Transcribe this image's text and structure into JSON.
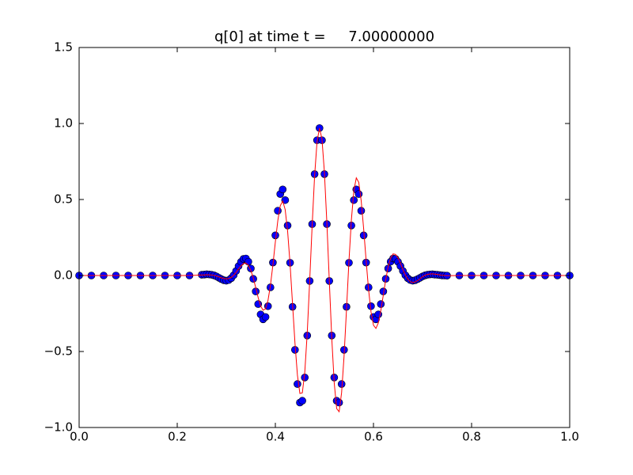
{
  "chart_data": {
    "type": "scatter",
    "title": "q[0] at time t =     7.00000000",
    "x": [
      0,
      0.025,
      0.05,
      0.075,
      0.1,
      0.125,
      0.15,
      0.175,
      0.2,
      0.225,
      0.25,
      0.255,
      0.26,
      0.265,
      0.27,
      0.275,
      0.28,
      0.285,
      0.29,
      0.295,
      0.3,
      0.305,
      0.31,
      0.315,
      0.32,
      0.325,
      0.33,
      0.335,
      0.34,
      0.345,
      0.35,
      0.355,
      0.36,
      0.365,
      0.37,
      0.375,
      0.38,
      0.385,
      0.39,
      0.395,
      0.4,
      0.405,
      0.41,
      0.415,
      0.42,
      0.425,
      0.43,
      0.435,
      0.44,
      0.445,
      0.45,
      0.455,
      0.46,
      0.465,
      0.47,
      0.475,
      0.48,
      0.485,
      0.49,
      0.495,
      0.5,
      0.505,
      0.51,
      0.515,
      0.52,
      0.525,
      0.53,
      0.535,
      0.54,
      0.545,
      0.55,
      0.555,
      0.56,
      0.565,
      0.57,
      0.575,
      0.58,
      0.585,
      0.59,
      0.595,
      0.6,
      0.605,
      0.61,
      0.615,
      0.62,
      0.625,
      0.63,
      0.635,
      0.64,
      0.645,
      0.65,
      0.655,
      0.66,
      0.665,
      0.67,
      0.675,
      0.68,
      0.685,
      0.69,
      0.695,
      0.7,
      0.705,
      0.71,
      0.715,
      0.72,
      0.725,
      0.73,
      0.735,
      0.74,
      0.745,
      0.75,
      0.775,
      0.8,
      0.825,
      0.85,
      0.875,
      0.9,
      0.925,
      0.95,
      0.975,
      1.0
    ],
    "series": [
      {
        "type": "scatter",
        "color": "#0000ff",
        "edgecolor": "#000000",
        "values": [
          0,
          0,
          0,
          0,
          0,
          0,
          0,
          0,
          0,
          0,
          0.005,
          0.006,
          0.008,
          0.007,
          0.005,
          0.001,
          -0.006,
          -0.015,
          -0.024,
          -0.031,
          -0.034,
          -0.03,
          -0.018,
          0.002,
          0.03,
          0.062,
          0.09,
          0.109,
          0.112,
          0.091,
          0.046,
          -0.022,
          -0.105,
          -0.188,
          -0.256,
          -0.288,
          -0.273,
          -0.202,
          -0.078,
          0.085,
          0.264,
          0.426,
          0.536,
          0.566,
          0.496,
          0.329,
          0.084,
          -0.206,
          -0.489,
          -0.714,
          -0.836,
          -0.824,
          -0.671,
          -0.395,
          -0.036,
          0.338,
          0.667,
          0.89,
          0.97,
          0.89,
          0.667,
          0.338,
          -0.036,
          -0.395,
          -0.671,
          -0.824,
          -0.836,
          -0.714,
          -0.489,
          -0.206,
          0.084,
          0.329,
          0.496,
          0.566,
          0.536,
          0.426,
          0.264,
          0.085,
          -0.078,
          -0.202,
          -0.273,
          -0.288,
          -0.256,
          -0.188,
          -0.105,
          -0.022,
          0.046,
          0.091,
          0.112,
          0.109,
          0.09,
          0.062,
          0.03,
          0.002,
          -0.018,
          -0.03,
          -0.034,
          -0.031,
          -0.024,
          -0.015,
          -0.006,
          0.001,
          0.005,
          0.007,
          0.008,
          0.006,
          0.005,
          0.003,
          0.001,
          0,
          -0.001,
          0,
          0,
          0,
          0,
          0,
          0,
          0,
          0,
          0,
          0
        ]
      },
      {
        "type": "line",
        "color": "#ff0000",
        "values": [
          0,
          0,
          0,
          0,
          0,
          0,
          0,
          0,
          0,
          0,
          0.003,
          0.003,
          0.005,
          0.004,
          0.003,
          0.001,
          -0.004,
          -0.009,
          -0.015,
          -0.02,
          -0.022,
          -0.02,
          -0.012,
          0.001,
          0.021,
          0.044,
          0.064,
          0.079,
          0.082,
          0.067,
          0.034,
          -0.017,
          -0.08,
          -0.146,
          -0.201,
          -0.228,
          -0.219,
          -0.164,
          -0.064,
          0.07,
          0.221,
          0.361,
          0.459,
          0.49,
          0.434,
          0.291,
          0.075,
          -0.186,
          -0.445,
          -0.656,
          -0.776,
          -0.772,
          -0.635,
          -0.377,
          -0.035,
          0.329,
          0.655,
          0.882,
          0.97,
          0.898,
          0.679,
          0.347,
          -0.037,
          -0.413,
          -0.707,
          -0.876,
          -0.896,
          -0.772,
          -0.533,
          -0.226,
          0.093,
          0.367,
          0.558,
          0.642,
          0.613,
          0.491,
          0.307,
          0.1,
          -0.092,
          -0.24,
          -0.327,
          -0.348,
          -0.311,
          -0.23,
          -0.13,
          -0.027,
          0.058,
          0.115,
          0.142,
          0.139,
          0.116,
          0.08,
          0.039,
          0.003,
          -0.024,
          -0.04,
          -0.046,
          -0.042,
          -0.033,
          -0.021,
          -0.008,
          0.001,
          0.007,
          0.01,
          0.011,
          0.009,
          0.007,
          0.004,
          0.001,
          0,
          -0.001,
          0,
          0,
          0,
          0,
          0,
          0,
          0,
          0,
          0,
          0
        ]
      }
    ],
    "xlim": [
      0,
      1
    ],
    "ylim": [
      -1,
      1.5
    ],
    "xticks": [
      {
        "value": 0,
        "label": "0.0"
      },
      {
        "value": 0.2,
        "label": "0.2"
      },
      {
        "value": 0.4,
        "label": "0.4"
      },
      {
        "value": 0.6,
        "label": "0.6"
      },
      {
        "value": 0.8,
        "label": "0.8"
      },
      {
        "value": 1,
        "label": "1.0"
      }
    ],
    "yticks": [
      {
        "value": -1,
        "label": "−1.0"
      },
      {
        "value": -0.5,
        "label": "−0.5"
      },
      {
        "value": 0,
        "label": "0.0"
      },
      {
        "value": 0.5,
        "label": "0.5"
      },
      {
        "value": 1,
        "label": "1.0"
      },
      {
        "value": 1.5,
        "label": "1.5"
      }
    ],
    "grid": false
  }
}
